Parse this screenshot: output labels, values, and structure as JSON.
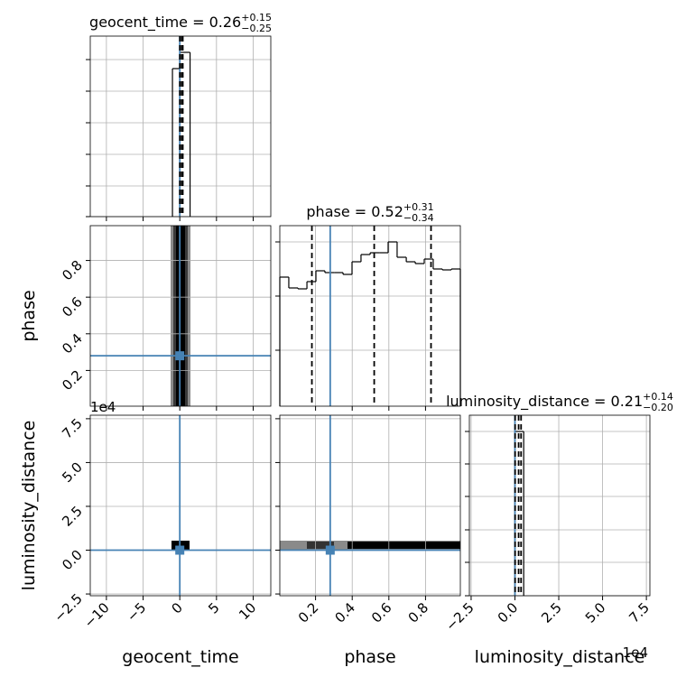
{
  "chart_data": {
    "type": "corner",
    "truth_color": "#4682b4",
    "grid": true,
    "parameters": [
      {
        "name": "geocent_time",
        "lim": [
          -12.2,
          12.4
        ],
        "ticks": [
          {
            "value": -10,
            "label": "−10"
          },
          {
            "value": -5,
            "label": "−5"
          },
          0,
          5,
          10
        ],
        "truth": 0,
        "title": {
          "text": "geocent_time = 0.26",
          "plus": "+0.15",
          "minus": "−0.25"
        },
        "quantiles": [
          0.01,
          0.26,
          0.41
        ],
        "hist": {
          "bins": [
            -1.0,
            0.0,
            1.4
          ],
          "counts": [
            0.82,
            0.91
          ],
          "ylim": [
            0,
            1
          ],
          "yticks": [
            0,
            0.17,
            0.345,
            0.52,
            0.695,
            0.87
          ]
        }
      },
      {
        "name": "phase",
        "lim": [
          0.005,
          0.99
        ],
        "ticks": [
          0.2,
          0.4,
          0.6,
          0.8
        ],
        "truth": 0.28,
        "title": {
          "text": "phase = 0.52",
          "plus": "+0.31",
          "minus": "−0.34"
        },
        "quantiles": [
          0.18,
          0.52,
          0.83
        ],
        "hist": {
          "bins": [
            0.005,
            0.054,
            0.104,
            0.153,
            0.202,
            0.251,
            0.301,
            0.35,
            0.399,
            0.448,
            0.498,
            0.547,
            0.596,
            0.645,
            0.695,
            0.744,
            0.793,
            0.842,
            0.892,
            0.941,
            0.99
          ],
          "counts": [
            143,
            131,
            130,
            138,
            150,
            148,
            148,
            146,
            160,
            168,
            170,
            170,
            182,
            165,
            160,
            158,
            163,
            152,
            151,
            152
          ],
          "ylim": [
            0,
            200
          ],
          "yticks": [
            62,
            122,
            182
          ]
        }
      },
      {
        "name": "luminosity_distance",
        "lim": [
          -2.6,
          7.7
        ],
        "ticks": [
          {
            "value": -2.5,
            "label": "−2.5"
          },
          {
            "value": 0,
            "label": "0.0"
          },
          2.5,
          {
            "value": 5,
            "label": "5.0"
          },
          7.5
        ],
        "offset": "1e4",
        "truth": 0,
        "title": {
          "text": "luminosity_distance = 0.21",
          "plus": "+0.14",
          "minus": "−0.20"
        },
        "quantiles": [
          0.01,
          0.21,
          0.35
        ],
        "hist": {
          "bins": [
            0.0,
            0.5
          ],
          "counts": [
            0.91
          ],
          "ylim": [
            0,
            1
          ],
          "yticks": [
            0,
            0.185,
            0.365,
            0.55,
            0.73,
            0.91
          ]
        }
      }
    ]
  }
}
